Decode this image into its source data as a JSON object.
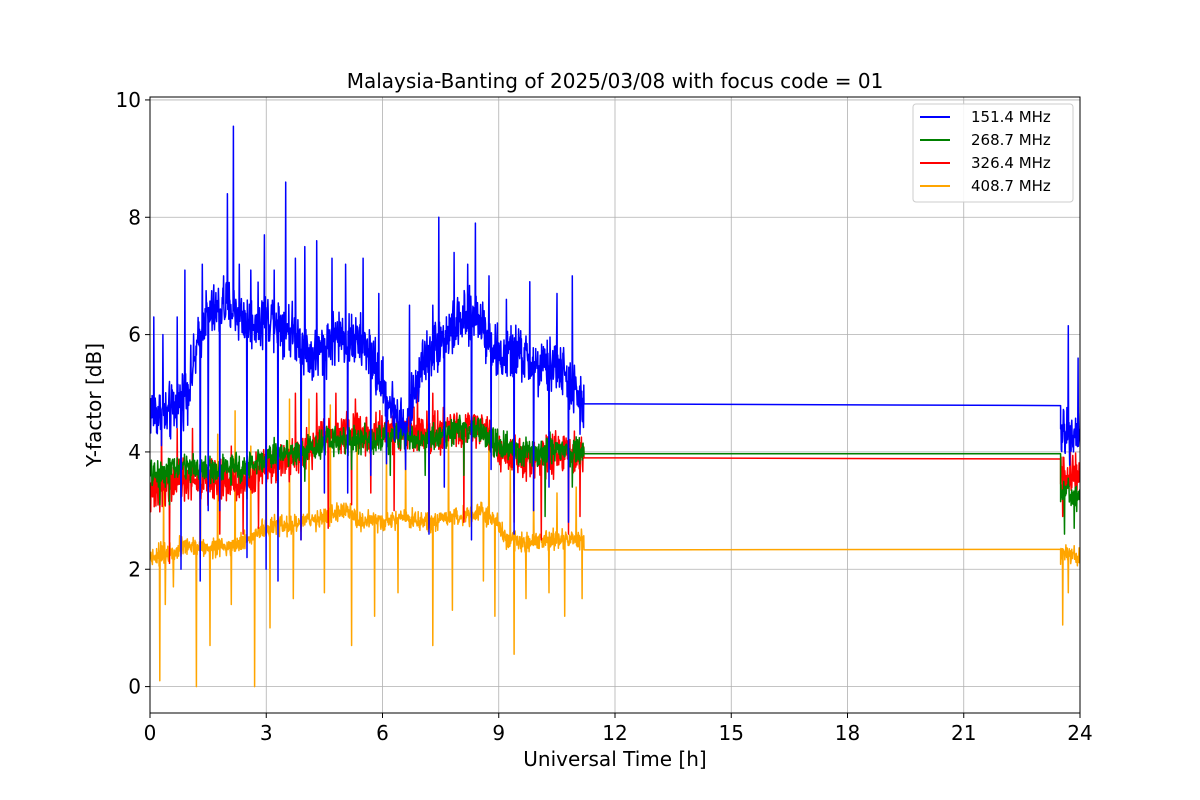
{
  "chart_data": {
    "type": "line",
    "title": "Malaysia-Banting of 2025/03/08 with focus code = 01",
    "xlabel": "Universal Time [h]",
    "ylabel": "Y-factor [dB]",
    "xlim": [
      0,
      24
    ],
    "ylim": [
      -0.45,
      10.05
    ],
    "xticks": [
      0,
      3,
      6,
      9,
      12,
      15,
      18,
      21,
      24
    ],
    "yticks": [
      0,
      2,
      4,
      6,
      8,
      10
    ],
    "grid": true,
    "legend_position": "top-right",
    "series": [
      {
        "name": "151.4 MHz",
        "color": "#0000ff",
        "base": [
          [
            0,
            4.7
          ],
          [
            0.5,
            4.6
          ],
          [
            1.0,
            5.1
          ],
          [
            1.4,
            6.3
          ],
          [
            2.0,
            6.5
          ],
          [
            2.6,
            6.2
          ],
          [
            3.2,
            6.3
          ],
          [
            3.8,
            6.0
          ],
          [
            4.2,
            5.6
          ],
          [
            4.8,
            6.0
          ],
          [
            5.6,
            5.8
          ],
          [
            6.2,
            4.8
          ],
          [
            6.6,
            4.4
          ],
          [
            7.0,
            5.5
          ],
          [
            7.5,
            5.9
          ],
          [
            8.0,
            6.2
          ],
          [
            8.5,
            6.3
          ],
          [
            9.0,
            5.6
          ],
          [
            9.5,
            5.7
          ],
          [
            10.0,
            5.4
          ],
          [
            10.5,
            5.5
          ],
          [
            11.0,
            5.0
          ],
          [
            11.2,
            4.7
          ]
        ],
        "gap": [
          [
            11.2,
            4.82
          ],
          [
            23.5,
            4.79
          ]
        ],
        "tail": [
          [
            23.5,
            4.3
          ],
          [
            24,
            4.4
          ]
        ],
        "noise": 0.35,
        "spikes": [
          [
            0.1,
            6.3
          ],
          [
            0.33,
            6.0
          ],
          [
            0.5,
            5.2
          ],
          [
            0.7,
            6.3
          ],
          [
            0.9,
            7.1
          ],
          [
            1.35,
            7.2
          ],
          [
            1.5,
            7.7
          ],
          [
            1.9,
            7.0
          ],
          [
            2.0,
            8.4
          ],
          [
            2.15,
            9.55
          ],
          [
            2.3,
            7.2
          ],
          [
            2.6,
            7.1
          ],
          [
            2.95,
            7.7
          ],
          [
            3.2,
            7.1
          ],
          [
            3.5,
            8.6
          ],
          [
            3.75,
            7.3
          ],
          [
            4.0,
            7.5
          ],
          [
            4.3,
            7.6
          ],
          [
            4.7,
            7.3
          ],
          [
            5.05,
            7.2
          ],
          [
            5.5,
            7.3
          ],
          [
            5.9,
            6.7
          ],
          [
            6.7,
            6.5
          ],
          [
            7.3,
            6.5
          ],
          [
            7.45,
            8.0
          ],
          [
            7.85,
            7.4
          ],
          [
            8.2,
            7.2
          ],
          [
            8.4,
            7.9
          ],
          [
            8.75,
            7.0
          ],
          [
            9.2,
            6.6
          ],
          [
            9.8,
            6.9
          ],
          [
            10.5,
            6.7
          ],
          [
            10.9,
            7.0
          ],
          [
            11.1,
            6.7
          ],
          [
            23.7,
            6.15
          ],
          [
            23.95,
            5.6
          ]
        ],
        "dips": [
          [
            0.8,
            2.0
          ],
          [
            1.3,
            1.8
          ],
          [
            1.5,
            3.0
          ],
          [
            1.8,
            3.0
          ],
          [
            2.5,
            2.2
          ],
          [
            3.0,
            2.0
          ],
          [
            3.3,
            1.8
          ],
          [
            3.9,
            2.5
          ],
          [
            4.5,
            3.3
          ],
          [
            5.1,
            3.3
          ],
          [
            5.7,
            3.6
          ],
          [
            6.1,
            3.8
          ],
          [
            6.6,
            3.7
          ],
          [
            7.2,
            2.6
          ],
          [
            7.6,
            3.4
          ],
          [
            8.3,
            2.5
          ],
          [
            8.8,
            3.7
          ],
          [
            9.4,
            2.6
          ],
          [
            9.9,
            3.0
          ],
          [
            10.3,
            3.4
          ],
          [
            10.8,
            2.8
          ],
          [
            11.1,
            4.3
          ],
          [
            23.45,
            3.5
          ]
        ]
      },
      {
        "name": "268.7 MHz",
        "color": "#008000",
        "base": [
          [
            0,
            3.6
          ],
          [
            0.5,
            3.7
          ],
          [
            1.0,
            3.75
          ],
          [
            1.5,
            3.7
          ],
          [
            2.0,
            3.7
          ],
          [
            2.5,
            3.75
          ],
          [
            3.0,
            3.9
          ],
          [
            3.5,
            4.0
          ],
          [
            4.0,
            4.0
          ],
          [
            4.5,
            4.2
          ],
          [
            5.0,
            4.2
          ],
          [
            5.5,
            4.2
          ],
          [
            6.0,
            4.25
          ],
          [
            6.5,
            4.3
          ],
          [
            7.0,
            4.2
          ],
          [
            7.5,
            4.3
          ],
          [
            8.0,
            4.4
          ],
          [
            8.5,
            4.35
          ],
          [
            9.0,
            4.1
          ],
          [
            9.5,
            4.0
          ],
          [
            10.0,
            4.0
          ],
          [
            10.5,
            4.05
          ],
          [
            11.0,
            4.0
          ],
          [
            11.2,
            4.05
          ]
        ],
        "gap": [
          [
            11.2,
            3.97
          ],
          [
            23.5,
            3.97
          ]
        ],
        "tail": [
          [
            23.5,
            3.3
          ],
          [
            24,
            3.2
          ]
        ],
        "noise": 0.18,
        "spikes": [],
        "dips": [
          [
            0.25,
            3.1
          ],
          [
            0.5,
            3.1
          ],
          [
            1.3,
            3.2
          ],
          [
            2.5,
            3.2
          ],
          [
            3.3,
            3.4
          ],
          [
            4.0,
            3.5
          ],
          [
            5.2,
            3.7
          ],
          [
            6.2,
            3.6
          ],
          [
            7.1,
            3.6
          ],
          [
            8.1,
            3.6
          ],
          [
            9.4,
            3.3
          ],
          [
            10.2,
            2.9
          ],
          [
            10.9,
            3.4
          ],
          [
            23.6,
            2.6
          ],
          [
            23.85,
            2.7
          ]
        ]
      },
      {
        "name": "326.4 MHz",
        "color": "#ff0000",
        "base": [
          [
            0,
            3.3
          ],
          [
            0.5,
            3.45
          ],
          [
            1.0,
            3.5
          ],
          [
            1.5,
            3.5
          ],
          [
            2.0,
            3.5
          ],
          [
            2.5,
            3.5
          ],
          [
            3.0,
            3.8
          ],
          [
            3.5,
            3.9
          ],
          [
            4.0,
            4.0
          ],
          [
            4.5,
            4.3
          ],
          [
            5.0,
            4.35
          ],
          [
            5.5,
            4.3
          ],
          [
            6.0,
            4.3
          ],
          [
            6.5,
            4.35
          ],
          [
            7.0,
            4.3
          ],
          [
            7.5,
            4.35
          ],
          [
            8.0,
            4.4
          ],
          [
            8.5,
            4.4
          ],
          [
            8.8,
            4.3
          ],
          [
            9.0,
            3.95
          ],
          [
            9.5,
            3.9
          ],
          [
            10.0,
            3.9
          ],
          [
            10.5,
            3.95
          ],
          [
            11.0,
            3.95
          ],
          [
            11.2,
            4.0
          ]
        ],
        "gap": [
          [
            11.2,
            3.9
          ],
          [
            23.5,
            3.88
          ]
        ],
        "tail": [
          [
            23.5,
            3.6
          ],
          [
            24,
            3.5
          ]
        ],
        "noise": 0.25,
        "spikes": [
          [
            0.3,
            4.5
          ],
          [
            0.7,
            4.4
          ],
          [
            1.1,
            4.4
          ],
          [
            2.1,
            4.1
          ],
          [
            3.0,
            5.0
          ],
          [
            3.3,
            4.4
          ],
          [
            3.75,
            5.0
          ],
          [
            4.3,
            5.0
          ],
          [
            4.8,
            5.0
          ],
          [
            5.1,
            5.25
          ],
          [
            5.3,
            4.9
          ],
          [
            5.7,
            4.9
          ],
          [
            6.1,
            4.9
          ],
          [
            6.9,
            5.1
          ],
          [
            7.3,
            5.0
          ],
          [
            8.2,
            4.6
          ],
          [
            8.7,
            4.6
          ],
          [
            23.75,
            4.0
          ]
        ],
        "dips": [
          [
            0.5,
            2.1
          ],
          [
            1.3,
            2.2
          ],
          [
            1.8,
            2.6
          ],
          [
            2.4,
            2.6
          ],
          [
            2.8,
            2.7
          ],
          [
            3.3,
            2.8
          ],
          [
            3.9,
            2.5
          ],
          [
            4.6,
            2.7
          ],
          [
            5.2,
            3.1
          ],
          [
            5.7,
            3.3
          ],
          [
            6.3,
            3.0
          ],
          [
            7.2,
            2.7
          ],
          [
            8.1,
            2.8
          ],
          [
            9.4,
            2.8
          ],
          [
            10.1,
            2.5
          ],
          [
            10.8,
            2.6
          ],
          [
            11.1,
            2.9
          ],
          [
            23.55,
            2.9
          ]
        ]
      },
      {
        "name": "408.7 MHz",
        "color": "#ffa500",
        "base": [
          [
            0,
            2.2
          ],
          [
            0.5,
            2.3
          ],
          [
            1.0,
            2.4
          ],
          [
            1.5,
            2.35
          ],
          [
            2.0,
            2.4
          ],
          [
            2.5,
            2.5
          ],
          [
            3.0,
            2.7
          ],
          [
            3.5,
            2.75
          ],
          [
            4.0,
            2.8
          ],
          [
            4.5,
            2.9
          ],
          [
            5.0,
            3.0
          ],
          [
            5.5,
            2.8
          ],
          [
            6.0,
            2.8
          ],
          [
            6.5,
            2.85
          ],
          [
            7.0,
            2.8
          ],
          [
            7.5,
            2.8
          ],
          [
            8.0,
            2.9
          ],
          [
            8.5,
            3.0
          ],
          [
            8.9,
            2.85
          ],
          [
            9.2,
            2.5
          ],
          [
            9.5,
            2.45
          ],
          [
            10.0,
            2.5
          ],
          [
            10.5,
            2.5
          ],
          [
            11.0,
            2.5
          ],
          [
            11.2,
            2.5
          ]
        ],
        "gap": [
          [
            11.2,
            2.33
          ],
          [
            23.5,
            2.34
          ]
        ],
        "tail": [
          [
            23.5,
            2.3
          ],
          [
            24,
            2.2
          ]
        ],
        "noise": 0.13,
        "spikes": [
          [
            0.35,
            3.6
          ],
          [
            0.6,
            3.7
          ],
          [
            1.3,
            3.8
          ],
          [
            1.75,
            4.3
          ],
          [
            2.2,
            4.7
          ],
          [
            2.6,
            4.1
          ],
          [
            3.0,
            5.2
          ],
          [
            3.6,
            4.9
          ],
          [
            4.1,
            4.9
          ],
          [
            4.65,
            4.8
          ],
          [
            5.35,
            4.5
          ],
          [
            6.1,
            4.3
          ],
          [
            6.6,
            4.3
          ],
          [
            7.2,
            4.8
          ],
          [
            7.7,
            4.5
          ],
          [
            8.3,
            4.4
          ],
          [
            8.75,
            4.4
          ],
          [
            9.3,
            3.8
          ],
          [
            9.9,
            3.6
          ],
          [
            10.5,
            3.3
          ],
          [
            11.0,
            3.4
          ]
        ],
        "dips": [
          [
            0.25,
            0.1
          ],
          [
            0.4,
            1.4
          ],
          [
            0.6,
            1.7
          ],
          [
            1.2,
            0.0
          ],
          [
            1.55,
            0.7
          ],
          [
            2.1,
            1.4
          ],
          [
            2.7,
            0.0
          ],
          [
            3.1,
            1.0
          ],
          [
            3.7,
            1.5
          ],
          [
            4.5,
            1.6
          ],
          [
            5.2,
            0.7
          ],
          [
            5.8,
            1.2
          ],
          [
            6.4,
            1.6
          ],
          [
            7.3,
            0.7
          ],
          [
            7.8,
            1.3
          ],
          [
            8.6,
            1.8
          ],
          [
            8.9,
            1.2
          ],
          [
            9.4,
            0.55
          ],
          [
            9.7,
            1.5
          ],
          [
            10.3,
            1.6
          ],
          [
            10.7,
            1.2
          ],
          [
            11.15,
            1.5
          ],
          [
            23.55,
            1.05
          ],
          [
            23.7,
            1.6
          ]
        ]
      }
    ]
  }
}
